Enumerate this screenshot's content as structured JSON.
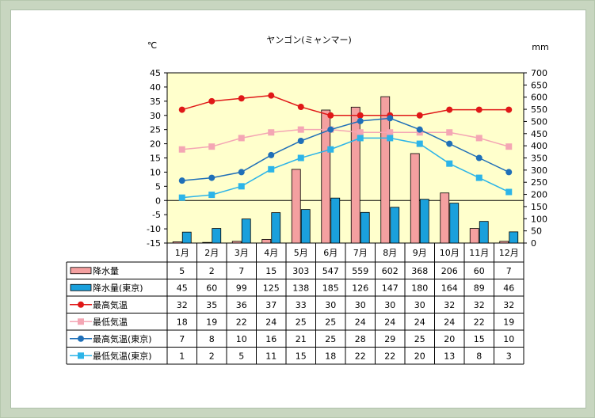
{
  "chart_data": {
    "type": "bar",
    "title": "ヤンゴン(ミャンマー)",
    "y_left_unit": "℃",
    "y_right_unit": "mm",
    "ylim_left": [
      -15,
      45
    ],
    "ylim_right": [
      0,
      700
    ],
    "yticks_left": [
      "45",
      "40",
      "35",
      "30",
      "25",
      "20",
      "15",
      "10",
      "5",
      "0",
      "-5",
      "-10",
      "-15"
    ],
    "yticks_right": [
      "700",
      "650",
      "600",
      "550",
      "500",
      "450",
      "400",
      "350",
      "300",
      "250",
      "200",
      "150",
      "100",
      "50",
      "0"
    ],
    "categories": [
      "1月",
      "2月",
      "3月",
      "4月",
      "5月",
      "6月",
      "7月",
      "8月",
      "9月",
      "10月",
      "11月",
      "12月"
    ],
    "series": [
      {
        "name": "降水量",
        "kind": "bar",
        "axis": "right",
        "color": "#f4a0a0",
        "values": [
          5,
          2,
          7,
          15,
          303,
          547,
          559,
          602,
          368,
          206,
          60,
          7
        ]
      },
      {
        "name": "降水量(東京)",
        "kind": "bar",
        "axis": "right",
        "color": "#1aa0dc",
        "values": [
          45,
          60,
          99,
          125,
          138,
          185,
          126,
          147,
          180,
          164,
          89,
          46
        ]
      },
      {
        "name": "最高気温",
        "kind": "line",
        "axis": "left",
        "color": "#e01818",
        "marker": "circle",
        "values": [
          32,
          35,
          36,
          37,
          33,
          30,
          30,
          30,
          30,
          32,
          32,
          32
        ]
      },
      {
        "name": "最低気温",
        "kind": "line",
        "axis": "left",
        "color": "#f4a6b4",
        "marker": "square",
        "values": [
          18,
          19,
          22,
          24,
          25,
          25,
          24,
          24,
          24,
          24,
          22,
          19
        ]
      },
      {
        "name": "最高気温(東京)",
        "kind": "line",
        "axis": "left",
        "color": "#1f6fb8",
        "marker": "circle",
        "values": [
          7,
          8,
          10,
          16,
          21,
          25,
          28,
          29,
          25,
          20,
          15,
          10
        ]
      },
      {
        "name": "最低気温(東京)",
        "kind": "line",
        "axis": "left",
        "color": "#2cb4e8",
        "marker": "square",
        "values": [
          1,
          2,
          5,
          11,
          15,
          18,
          22,
          22,
          20,
          13,
          8,
          3
        ]
      }
    ],
    "plot_background": "#ffffcc",
    "grid": false
  }
}
